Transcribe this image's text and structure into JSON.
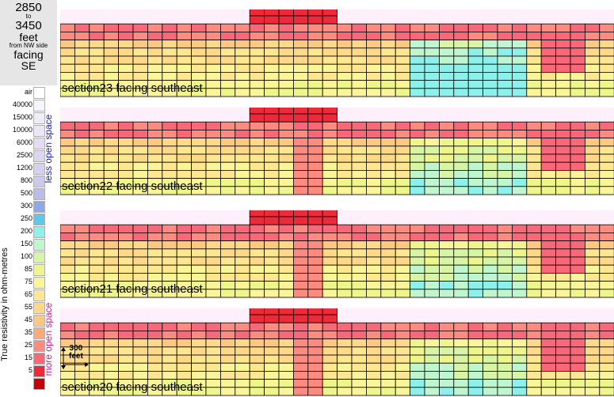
{
  "header": {
    "range_start": "2850",
    "range_to": "to",
    "range_end": "3450",
    "unit": "feet",
    "reference": "from NW side",
    "facing_label": "facing",
    "facing_dir": "SE"
  },
  "legend": {
    "title": "True resistivity in ohm-metres",
    "less_label": "less open space",
    "more_label": "more open space",
    "entries": [
      {
        "label": "air",
        "color": "#ffffff"
      },
      {
        "label": "40000",
        "color": "#f8f4fc"
      },
      {
        "label": "15000",
        "color": "#f0ecfa"
      },
      {
        "label": "10000",
        "color": "#ebe6f8"
      },
      {
        "label": "6000",
        "color": "#e4dcf4"
      },
      {
        "label": "2500",
        "color": "#ddd6f2"
      },
      {
        "label": "1200",
        "color": "#d6d0f0"
      },
      {
        "label": "800",
        "color": "#cdc8ee"
      },
      {
        "label": "500",
        "color": "#bcbcea"
      },
      {
        "label": "300",
        "color": "#8fa8ec"
      },
      {
        "label": "250",
        "color": "#5ec8e8"
      },
      {
        "label": "200",
        "color": "#8ef0ea"
      },
      {
        "label": "150",
        "color": "#bff5cf"
      },
      {
        "label": "100",
        "color": "#d8f5a6"
      },
      {
        "label": "85",
        "color": "#eef58a"
      },
      {
        "label": "75",
        "color": "#fbf59a"
      },
      {
        "label": "65",
        "color": "#ffe690"
      },
      {
        "label": "55",
        "color": "#ffd888"
      },
      {
        "label": "45",
        "color": "#ffc880"
      },
      {
        "label": "35",
        "color": "#ffaa78"
      },
      {
        "label": "25",
        "color": "#ff8a80"
      },
      {
        "label": "15",
        "color": "#f86878"
      },
      {
        "label": "5",
        "color": "#ec2a3a"
      },
      {
        "label": "",
        "color": "#c8000c"
      }
    ]
  },
  "scale_bar": {
    "value": "300",
    "unit": "feet"
  },
  "sections": [
    {
      "caption": "section23 facing southeast"
    },
    {
      "caption": "section22 facing southeast"
    },
    {
      "caption": "section21 facing southeast"
    },
    {
      "caption": "section20 facing southeast"
    }
  ]
}
